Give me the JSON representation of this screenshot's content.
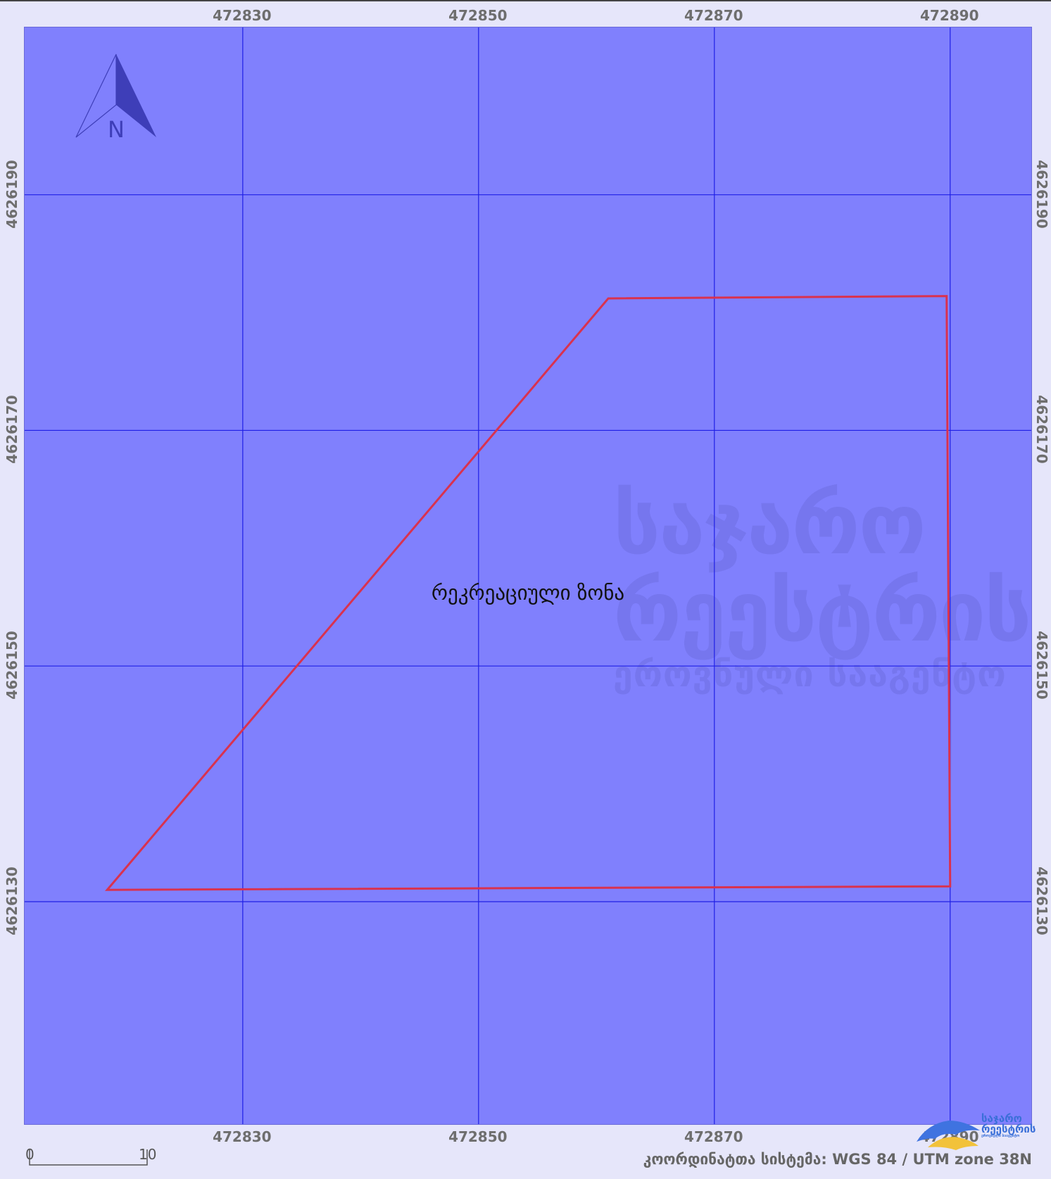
{
  "map": {
    "background_color": "#8080fd",
    "grid_color": "#1f1fe6",
    "parcel_color": "#d9324f",
    "x_ticks": [
      472830,
      472850,
      472870,
      472890
    ],
    "y_ticks": [
      4626190,
      4626170,
      4626150,
      4626130
    ],
    "x_range": [
      472811.5,
      472897.0
    ],
    "y_range": [
      4626204.2,
      4626111.0
    ],
    "parcel": [
      [
        472818.5,
        4626131.0
      ],
      [
        472861.0,
        4626181.2
      ],
      [
        472889.7,
        4626181.4
      ],
      [
        472890.0,
        4626131.3
      ]
    ],
    "zone_label": "რეკრეაციული ზონა"
  },
  "north_arrow": {
    "label": "N",
    "icon": "north-arrow-icon"
  },
  "scale_bar": {
    "start_label": "0",
    "end_label": "10"
  },
  "coordinate_system": "კოორდინატთა სისტემა: WGS 84 / UTM zone 38N",
  "watermark": {
    "line1": "საჯარო",
    "line2": "რეესტრის",
    "line3": "ეროვნული სააგენტო"
  },
  "logo": {
    "line1": "საჯარო",
    "line2": "რეესტრის",
    "line3": "ეროვნული სააგენტო"
  }
}
